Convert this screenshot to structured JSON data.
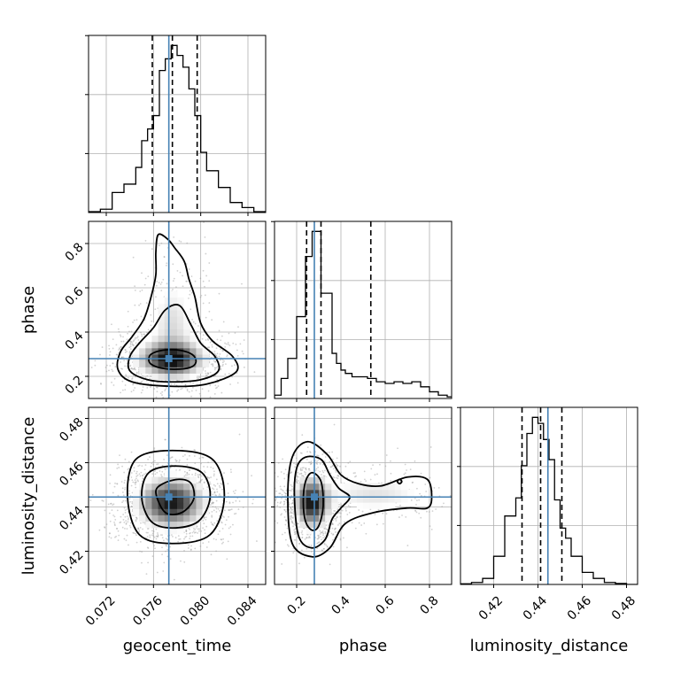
{
  "chart_data": {
    "type": "corner",
    "parameters": [
      "geocent_time",
      "phase",
      "luminosity_distance"
    ],
    "axis_labels": {
      "x": [
        "geocent_time",
        "phase",
        "luminosity_distance"
      ],
      "y": [
        "phase",
        "luminosity_distance"
      ]
    },
    "ranges": {
      "geocent_time": [
        0.0705,
        0.0855
      ],
      "phase": [
        0.1,
        0.9
      ],
      "luminosity_distance": [
        0.405,
        0.485
      ]
    },
    "ticks": {
      "geocent_time": [
        "0.072",
        "0.076",
        "0.080",
        "0.084"
      ],
      "phase": [
        "0.2",
        "0.4",
        "0.6",
        "0.8"
      ],
      "luminosity_distance": [
        "0.42",
        "0.44",
        "0.46",
        "0.48"
      ]
    },
    "truths": {
      "geocent_time": 0.0773,
      "phase": 0.28,
      "luminosity_distance": 0.4445
    },
    "truth_color": "#4682b4",
    "quantile_color": "#000000",
    "grid": true,
    "diagonal": [
      {
        "parameter": "geocent_time",
        "quantiles": [
          0.0759,
          0.0776,
          0.0797
        ],
        "bin_edges": [
          0.0705,
          0.0715,
          0.0725,
          0.0735,
          0.0745,
          0.075,
          0.0755,
          0.076,
          0.0765,
          0.077,
          0.0775,
          0.078,
          0.0785,
          0.079,
          0.0795,
          0.08,
          0.0805,
          0.0815,
          0.0825,
          0.0835,
          0.0845,
          0.0855
        ],
        "counts": [
          0.5,
          2,
          12,
          17,
          27,
          43,
          50,
          58,
          85,
          92,
          100,
          94,
          87,
          74,
          58,
          36,
          25,
          15,
          6,
          3,
          0.5
        ]
      },
      {
        "parameter": "phase",
        "quantiles": [
          0.245,
          0.31,
          0.535
        ],
        "bin_edges": [
          0.1,
          0.13,
          0.16,
          0.2,
          0.24,
          0.27,
          0.31,
          0.36,
          0.38,
          0.4,
          0.42,
          0.45,
          0.52,
          0.56,
          0.6,
          0.64,
          0.68,
          0.72,
          0.76,
          0.8,
          0.84,
          0.88,
          0.9
        ],
        "counts": [
          2,
          12,
          24,
          49,
          85,
          100,
          63,
          27,
          21,
          17,
          15,
          13,
          12,
          10,
          9,
          10,
          9,
          10,
          7,
          4,
          2,
          1
        ]
      },
      {
        "parameter": "luminosity_distance",
        "quantiles": [
          0.4328,
          0.4412,
          0.4508
        ],
        "bin_edges": [
          0.405,
          0.41,
          0.415,
          0.42,
          0.425,
          0.43,
          0.4325,
          0.435,
          0.4375,
          0.44,
          0.4425,
          0.445,
          0.4475,
          0.45,
          0.4525,
          0.455,
          0.46,
          0.465,
          0.47,
          0.475,
          0.48,
          0.485
        ],
        "counts": [
          0.3,
          1,
          3,
          14,
          34,
          43,
          59,
          75,
          83,
          80,
          72,
          62,
          42,
          28,
          23,
          14,
          6,
          3,
          1,
          0.5,
          0
        ]
      }
    ],
    "pairs": [
      {
        "x": "geocent_time",
        "y": "phase",
        "density_blobs": [
          {
            "cx": 0.0775,
            "cy": 0.28,
            "sx": 0.0016,
            "sy": 0.045,
            "w": 1.0
          },
          {
            "cx": 0.0776,
            "cy": 0.42,
            "sx": 0.0012,
            "sy": 0.14,
            "w": 0.25
          }
        ],
        "contours": [
          {
            "level": 1,
            "points": [
              [
                0.0758,
                0.255
              ],
              [
                0.0766,
                0.238
              ],
              [
                0.0778,
                0.232
              ],
              [
                0.0791,
                0.24
              ],
              [
                0.0796,
                0.265
              ],
              [
                0.0793,
                0.298
              ],
              [
                0.0782,
                0.318
              ],
              [
                0.0768,
                0.318
              ],
              [
                0.0758,
                0.3
              ],
              [
                0.0756,
                0.275
              ]
            ]
          },
          {
            "level": 2,
            "points": [
              [
                0.074,
                0.225
              ],
              [
                0.0755,
                0.185
              ],
              [
                0.0775,
                0.175
              ],
              [
                0.08,
                0.185
              ],
              [
                0.0815,
                0.225
              ],
              [
                0.0812,
                0.29
              ],
              [
                0.08,
                0.35
              ],
              [
                0.0792,
                0.43
              ],
              [
                0.0782,
                0.52
              ],
              [
                0.077,
                0.5
              ],
              [
                0.076,
                0.42
              ],
              [
                0.0748,
                0.35
              ],
              [
                0.074,
                0.29
              ]
            ]
          },
          {
            "level": 3,
            "points": [
              [
                0.073,
                0.23
              ],
              [
                0.0742,
                0.175
              ],
              [
                0.0775,
                0.155
              ],
              [
                0.0805,
                0.165
              ],
              [
                0.083,
                0.22
              ],
              [
                0.0827,
                0.29
              ],
              [
                0.081,
                0.36
              ],
              [
                0.08,
                0.44
              ],
              [
                0.0795,
                0.56
              ],
              [
                0.079,
                0.64
              ],
              [
                0.0786,
                0.72
              ],
              [
                0.0778,
                0.78
              ],
              [
                0.0772,
                0.82
              ],
              [
                0.0764,
                0.84
              ],
              [
                0.0762,
                0.76
              ],
              [
                0.0762,
                0.66
              ],
              [
                0.0758,
                0.56
              ],
              [
                0.0752,
                0.46
              ],
              [
                0.0742,
                0.38
              ],
              [
                0.0732,
                0.31
              ]
            ]
          }
        ]
      },
      {
        "x": "geocent_time",
        "y": "luminosity_distance",
        "density_blobs": [
          {
            "cx": 0.0775,
            "cy": 0.442,
            "sx": 0.0016,
            "sy": 0.0065,
            "w": 1.0
          }
        ],
        "contours": [
          {
            "level": 1,
            "points": [
              [
                0.0762,
                0.4465
              ],
              [
                0.077,
                0.4375
              ],
              [
                0.0784,
                0.4375
              ],
              [
                0.0794,
                0.4435
              ],
              [
                0.0792,
                0.4505
              ],
              [
                0.0782,
                0.4525
              ],
              [
                0.0768,
                0.4505
              ]
            ]
          },
          {
            "level": 2,
            "points": [
              [
                0.075,
                0.4445
              ],
              [
                0.0758,
                0.4335
              ],
              [
                0.0776,
                0.4305
              ],
              [
                0.0798,
                0.4335
              ],
              [
                0.0808,
                0.4445
              ],
              [
                0.0801,
                0.4555
              ],
              [
                0.0778,
                0.4585
              ],
              [
                0.0756,
                0.4555
              ]
            ]
          },
          {
            "level": 3,
            "points": [
              [
                0.0738,
                0.4445
              ],
              [
                0.0748,
                0.4275
              ],
              [
                0.0776,
                0.4235
              ],
              [
                0.0808,
                0.4275
              ],
              [
                0.082,
                0.4445
              ],
              [
                0.081,
                0.4615
              ],
              [
                0.0776,
                0.4655
              ],
              [
                0.0745,
                0.4615
              ]
            ]
          }
        ]
      },
      {
        "x": "phase",
        "y": "luminosity_distance",
        "density_blobs": [
          {
            "cx": 0.27,
            "cy": 0.442,
            "sx": 0.045,
            "sy": 0.0065,
            "w": 1.0
          },
          {
            "cx": 0.55,
            "cy": 0.446,
            "sx": 0.16,
            "sy": 0.0055,
            "w": 0.22
          }
        ],
        "contours": [
          {
            "level": 1,
            "points": [
              [
                0.24,
                0.4335
              ],
              [
                0.27,
                0.4295
              ],
              [
                0.3,
                0.4315
              ],
              [
                0.32,
                0.4405
              ],
              [
                0.31,
                0.4515
              ],
              [
                0.27,
                0.4555
              ],
              [
                0.24,
                0.4515
              ],
              [
                0.23,
                0.4425
              ]
            ]
          },
          {
            "level": 2,
            "points": [
              [
                0.19,
                0.4445
              ],
              [
                0.21,
                0.4265
              ],
              [
                0.27,
                0.4215
              ],
              [
                0.33,
                0.4255
              ],
              [
                0.36,
                0.4345
              ],
              [
                0.4,
                0.4395
              ],
              [
                0.44,
                0.4445
              ],
              [
                0.39,
                0.4485
              ],
              [
                0.35,
                0.4545
              ],
              [
                0.31,
                0.4615
              ],
              [
                0.24,
                0.4625
              ],
              [
                0.2,
                0.4575
              ]
            ]
          },
          {
            "level": 3,
            "points": [
              [
                0.16,
                0.4445
              ],
              [
                0.18,
                0.4235
              ],
              [
                0.27,
                0.4175
              ],
              [
                0.35,
                0.4215
              ],
              [
                0.42,
                0.4325
              ],
              [
                0.55,
                0.4375
              ],
              [
                0.7,
                0.4395
              ],
              [
                0.79,
                0.4395
              ],
              [
                0.81,
                0.4445
              ],
              [
                0.79,
                0.4525
              ],
              [
                0.7,
                0.4535
              ],
              [
                0.58,
                0.4495
              ],
              [
                0.48,
                0.4505
              ],
              [
                0.4,
                0.4545
              ],
              [
                0.34,
                0.4635
              ],
              [
                0.25,
                0.4695
              ],
              [
                0.18,
                0.4625
              ]
            ]
          },
          {
            "level": 4,
            "points": [
              [
                0.655,
                0.4515
              ],
              [
                0.665,
                0.4505
              ],
              [
                0.675,
                0.4515
              ],
              [
                0.665,
                0.4525
              ]
            ]
          }
        ]
      }
    ]
  }
}
